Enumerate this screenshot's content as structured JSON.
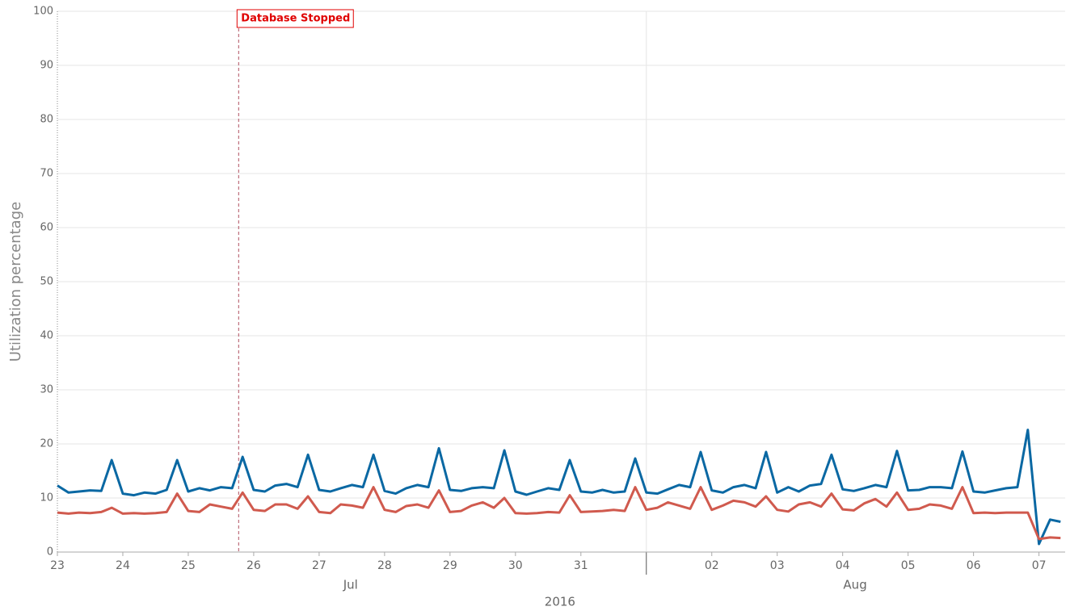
{
  "chart_data": {
    "type": "line",
    "ylabel": "Utilization percentage",
    "xlim": [
      0,
      15.4
    ],
    "ylim": [
      0,
      100
    ],
    "yticks": [
      0,
      10,
      20,
      30,
      40,
      50,
      60,
      70,
      80,
      90,
      100
    ],
    "xticks": [
      {
        "value": 0,
        "label": "23"
      },
      {
        "value": 1,
        "label": "24"
      },
      {
        "value": 2,
        "label": "25"
      },
      {
        "value": 3,
        "label": "26"
      },
      {
        "value": 4,
        "label": "27"
      },
      {
        "value": 5,
        "label": "28"
      },
      {
        "value": 6,
        "label": "29"
      },
      {
        "value": 7,
        "label": "30"
      },
      {
        "value": 8,
        "label": "31"
      },
      {
        "value": 10,
        "label": "02"
      },
      {
        "value": 11,
        "label": "03"
      },
      {
        "value": 12,
        "label": "04"
      },
      {
        "value": 13,
        "label": "05"
      },
      {
        "value": 14,
        "label": "06"
      },
      {
        "value": 15,
        "label": "07"
      }
    ],
    "month_labels": [
      {
        "label": "Jul",
        "x": 4.48
      },
      {
        "label": "Aug",
        "x": 12.19
      }
    ],
    "month_divider": 9,
    "year_label": {
      "label": "2016",
      "x": 7.68
    },
    "grid": true,
    "annotations": [
      {
        "label": "Database Stopped",
        "x": 2.77,
        "color": "#e00000"
      }
    ],
    "x": [
      0,
      0.17,
      0.33,
      0.5,
      0.67,
      0.83,
      1,
      1.17,
      1.33,
      1.5,
      1.67,
      1.83,
      2,
      2.17,
      2.33,
      2.5,
      2.67,
      2.83,
      3,
      3.17,
      3.33,
      3.5,
      3.67,
      3.83,
      4,
      4.17,
      4.33,
      4.5,
      4.67,
      4.83,
      5,
      5.17,
      5.33,
      5.5,
      5.67,
      5.83,
      6,
      6.17,
      6.33,
      6.5,
      6.67,
      6.83,
      7,
      7.17,
      7.33,
      7.5,
      7.67,
      7.83,
      8,
      8.17,
      8.33,
      8.5,
      8.67,
      8.83,
      9,
      9.17,
      9.33,
      9.5,
      9.67,
      9.83,
      10,
      10.17,
      10.33,
      10.5,
      10.67,
      10.83,
      11,
      11.17,
      11.33,
      11.5,
      11.67,
      11.83,
      12,
      12.17,
      12.33,
      12.5,
      12.67,
      12.83,
      13,
      13.17,
      13.33,
      13.5,
      13.67,
      13.83,
      14,
      14.17,
      14.33,
      14.5,
      14.67,
      14.83,
      15,
      15.17,
      15.33
    ],
    "series": [
      {
        "color": "#0a68a3",
        "values": [
          12.3,
          11,
          11.2,
          11.4,
          11.3,
          17.0,
          10.8,
          10.5,
          11,
          10.8,
          11.5,
          17.0,
          11.2,
          11.8,
          11.4,
          12,
          11.8,
          17.6,
          11.5,
          11.2,
          12.3,
          12.6,
          12,
          18,
          11.5,
          11.2,
          11.8,
          12.4,
          12,
          18,
          11.3,
          10.8,
          11.8,
          12.4,
          12,
          19.2,
          11.5,
          11.3,
          11.8,
          12,
          11.8,
          18.8,
          11.2,
          10.6,
          11.2,
          11.8,
          11.5,
          17.0,
          11.2,
          11,
          11.5,
          11,
          11.2,
          17.3,
          11,
          10.8,
          11.6,
          12.4,
          12,
          18.5,
          11.4,
          11,
          12,
          12.4,
          11.8,
          18.5,
          11,
          12,
          11.2,
          12.3,
          12.6,
          18,
          11.6,
          11.3,
          11.8,
          12.4,
          12,
          18.7,
          11.4,
          11.5,
          12,
          12,
          11.8,
          18.6,
          11.2,
          11,
          11.4,
          11.8,
          12,
          22.6,
          1.5,
          6,
          5.6
        ]
      },
      {
        "color": "#d05a4e",
        "values": [
          7.3,
          7.1,
          7.3,
          7.2,
          7.4,
          8.2,
          7.1,
          7.2,
          7.1,
          7.2,
          7.4,
          10.8,
          7.6,
          7.4,
          8.8,
          8.4,
          8,
          11.0,
          7.8,
          7.6,
          8.8,
          8.8,
          8,
          10.3,
          7.4,
          7.2,
          8.8,
          8.6,
          8.2,
          12.0,
          7.8,
          7.4,
          8.5,
          8.8,
          8.2,
          11.4,
          7.4,
          7.6,
          8.6,
          9.2,
          8.2,
          10,
          7.2,
          7.1,
          7.2,
          7.4,
          7.3,
          10.5,
          7.4,
          7.5,
          7.6,
          7.8,
          7.6,
          12,
          7.8,
          8.2,
          9.2,
          8.6,
          8,
          12,
          7.8,
          8.6,
          9.5,
          9.2,
          8.4,
          10.3,
          7.8,
          7.5,
          8.8,
          9.2,
          8.4,
          10.8,
          7.9,
          7.7,
          9,
          9.8,
          8.4,
          11.0,
          7.8,
          8,
          8.8,
          8.6,
          8,
          12,
          7.2,
          7.3,
          7.2,
          7.3,
          7.3,
          7.3,
          2.4,
          2.7,
          2.6
        ]
      }
    ]
  }
}
